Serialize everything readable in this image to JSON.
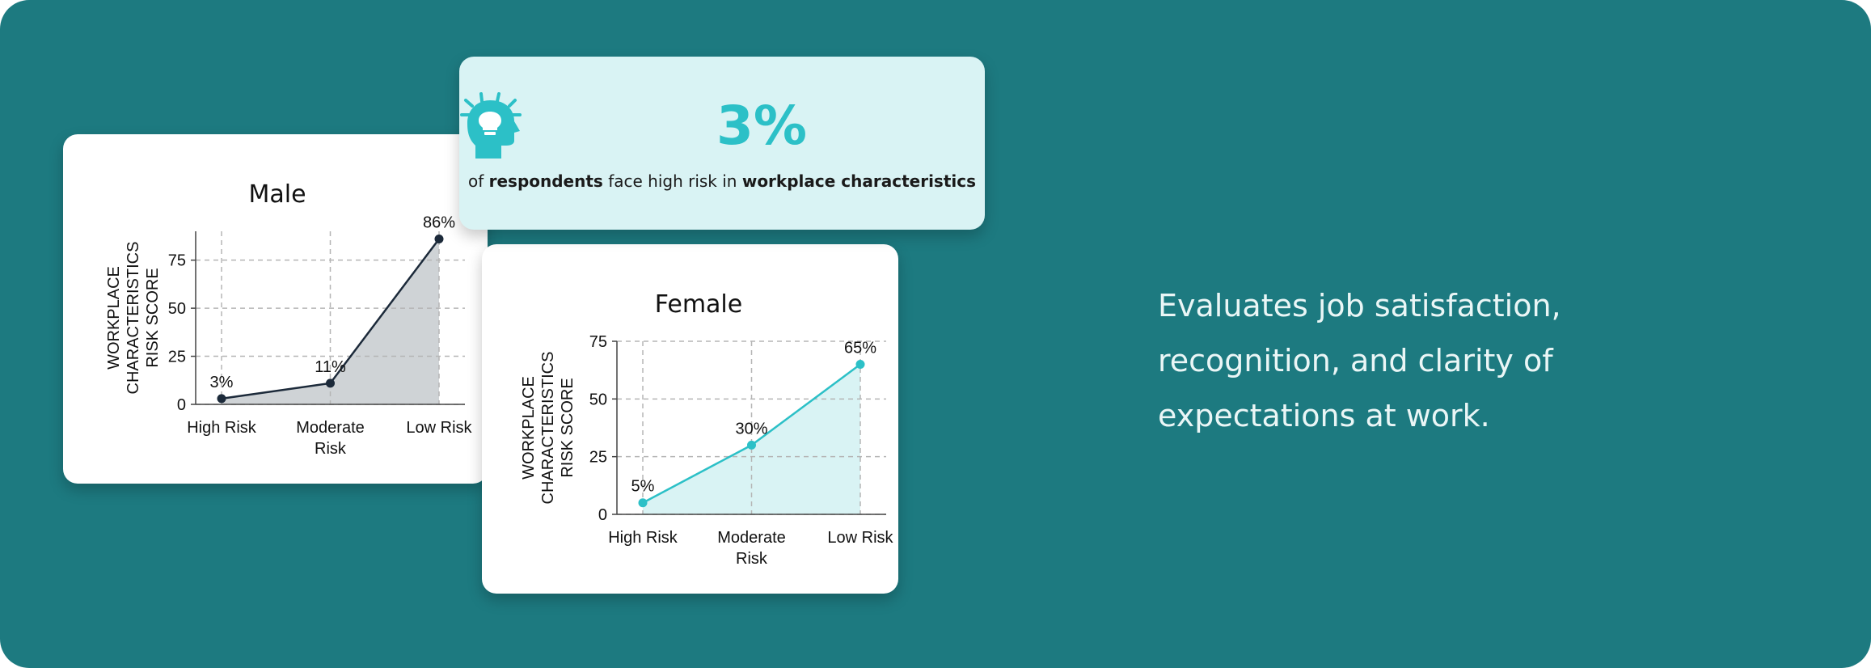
{
  "stat": {
    "icon": "idea-head-icon",
    "value": "3%",
    "caption_pre": "of",
    "caption_bold1": "respondents",
    "caption_mid": "face high risk in",
    "caption_bold2": "workplace characteristics",
    "accent": "#2cc0c7",
    "background": "#d9f3f4"
  },
  "description": {
    "line1": "Evaluates job satisfaction,",
    "line2": "recognition, and clarity of",
    "line3": "expectations at work."
  },
  "colors": {
    "banner": "#1d7a80",
    "male_series": "#1c2a3a",
    "male_fill": "#cfd3d6",
    "female_series": "#2cc0c7",
    "female_fill": "#d9f3f4"
  },
  "chart_data": [
    {
      "type": "area",
      "title": "Male",
      "categories": [
        "High Risk",
        "Moderate Risk",
        "Low Risk"
      ],
      "category_lines": [
        [
          "High Risk"
        ],
        [
          "Moderate",
          "Risk"
        ],
        [
          "Low Risk"
        ]
      ],
      "series": [
        {
          "values": [
            3,
            11,
            86
          ],
          "labels": [
            "3%",
            "11%",
            "86%"
          ]
        }
      ],
      "ylabel_lines": [
        "WORKPLACE",
        "CHARACTERISTICS",
        "RISK SCORE"
      ],
      "yticks": [
        0,
        25,
        50,
        75
      ],
      "ylim": [
        0,
        90
      ],
      "grid": true
    },
    {
      "type": "area",
      "title": "Female",
      "categories": [
        "High Risk",
        "Moderate Risk",
        "Low Risk"
      ],
      "category_lines": [
        [
          "High Risk"
        ],
        [
          "Moderate",
          "Risk"
        ],
        [
          "Low Risk"
        ]
      ],
      "series": [
        {
          "values": [
            5,
            30,
            65
          ],
          "labels": [
            "5%",
            "30%",
            "65%"
          ]
        }
      ],
      "ylabel_lines": [
        "WORKPLACE",
        "CHARACTERISTICS",
        "RISK SCORE"
      ],
      "yticks": [
        0,
        25,
        50,
        75
      ],
      "ylim": [
        0,
        75
      ],
      "grid": true
    }
  ]
}
